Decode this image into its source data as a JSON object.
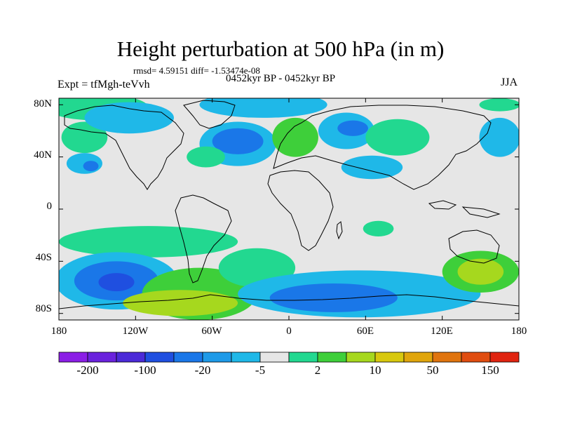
{
  "title": "Height perturbation at 500 hPa (in m)",
  "stats_text": "rmsd= 4.59151 diff= -1.53474e-08",
  "periods": "0452kyr BP - 0452kyr BP",
  "experiment": "Expt = tfMgh-teVvh",
  "season": "JJA",
  "lat_labels": [
    "80N",
    "40N",
    "0",
    "40S",
    "80S"
  ],
  "lon_labels": [
    "180",
    "120W",
    "60W",
    "0",
    "60E",
    "120E",
    "180"
  ],
  "colorbar": {
    "colors": [
      "#8b1ee6",
      "#6a22dd",
      "#4b2ad8",
      "#1f4fe0",
      "#1a77e8",
      "#1e9ae8",
      "#1fb8e8",
      "#e6e6e6",
      "#22d890",
      "#3ecf3a",
      "#a6d81e",
      "#d8c80e",
      "#e0a50c",
      "#e0740e",
      "#e04d10",
      "#e02410"
    ],
    "labels": [
      "-200",
      "-100",
      "-20",
      "-5",
      "2",
      "10",
      "50",
      "150"
    ]
  },
  "chart_data": {
    "type": "heatmap",
    "title": "Height perturbation at 500 hPa (in m)",
    "subtitle": "rmsd= 4.59151 diff= -1.53474e-08",
    "lon_range": [
      -180,
      180
    ],
    "lat_range": [
      -90,
      90
    ],
    "colorbar_levels_labeled": [
      -200,
      -100,
      -20,
      -5,
      2,
      10,
      50,
      150
    ],
    "regions": [
      {
        "class": "pos_light",
        "lon": -150,
        "lat": 78,
        "rx": 40,
        "ry": 10
      },
      {
        "class": "pos_light",
        "lon": -160,
        "lat": 55,
        "rx": 18,
        "ry": 12
      },
      {
        "class": "neg_light",
        "lon": -125,
        "lat": 70,
        "rx": 35,
        "ry": 12
      },
      {
        "class": "neg_light",
        "lon": -160,
        "lat": 35,
        "rx": 14,
        "ry": 8
      },
      {
        "class": "neg_mid",
        "lon": -155,
        "lat": 33,
        "rx": 6,
        "ry": 4
      },
      {
        "class": "neg_light",
        "lon": -40,
        "lat": 50,
        "rx": 30,
        "ry": 17
      },
      {
        "class": "neg_mid",
        "lon": -40,
        "lat": 52,
        "rx": 20,
        "ry": 10
      },
      {
        "class": "neg_light",
        "lon": -20,
        "lat": 80,
        "rx": 50,
        "ry": 10
      },
      {
        "class": "pos_light",
        "lon": -65,
        "lat": 40,
        "rx": 15,
        "ry": 8
      },
      {
        "class": "pos_mid",
        "lon": 5,
        "lat": 55,
        "rx": 18,
        "ry": 15
      },
      {
        "class": "neg_light",
        "lon": 45,
        "lat": 60,
        "rx": 22,
        "ry": 14
      },
      {
        "class": "neg_mid",
        "lon": 50,
        "lat": 62,
        "rx": 12,
        "ry": 6
      },
      {
        "class": "pos_light",
        "lon": 85,
        "lat": 55,
        "rx": 25,
        "ry": 14
      },
      {
        "class": "neg_light",
        "lon": 65,
        "lat": 32,
        "rx": 24,
        "ry": 9
      },
      {
        "class": "neg_light",
        "lon": 165,
        "lat": 55,
        "rx": 16,
        "ry": 15
      },
      {
        "class": "pos_light",
        "lon": 165,
        "lat": 80,
        "rx": 16,
        "ry": 5
      },
      {
        "class": "pos_light",
        "lon": 70,
        "lat": -15,
        "rx": 12,
        "ry": 6
      },
      {
        "class": "pos_light",
        "lon": -110,
        "lat": -25,
        "rx": 70,
        "ry": 12
      },
      {
        "class": "neg_light",
        "lon": -135,
        "lat": -55,
        "rx": 48,
        "ry": 22
      },
      {
        "class": "neg_mid",
        "lon": -135,
        "lat": -55,
        "rx": 33,
        "ry": 15
      },
      {
        "class": "neg_dark",
        "lon": -135,
        "lat": -56,
        "rx": 14,
        "ry": 7
      },
      {
        "class": "pos_mid",
        "lon": -70,
        "lat": -65,
        "rx": 45,
        "ry": 20
      },
      {
        "class": "pos_strong",
        "lon": -85,
        "lat": -72,
        "rx": 45,
        "ry": 10
      },
      {
        "class": "pos_light",
        "lon": -25,
        "lat": -45,
        "rx": 30,
        "ry": 15
      },
      {
        "class": "neg_light",
        "lon": 55,
        "lat": -65,
        "rx": 95,
        "ry": 18
      },
      {
        "class": "neg_mid",
        "lon": 35,
        "lat": -68,
        "rx": 50,
        "ry": 11
      },
      {
        "class": "pos_mid",
        "lon": 150,
        "lat": -48,
        "rx": 30,
        "ry": 16
      },
      {
        "class": "pos_strong",
        "lon": 150,
        "lat": -48,
        "rx": 18,
        "ry": 10
      }
    ]
  }
}
